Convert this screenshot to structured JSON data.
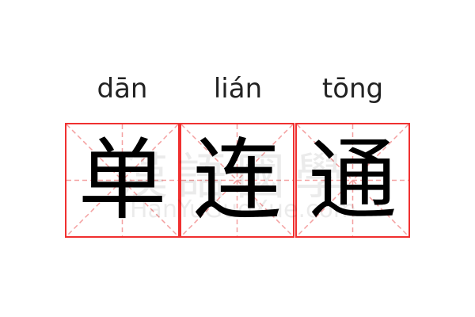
{
  "words": [
    {
      "pinyin": "dān",
      "char": "单"
    },
    {
      "pinyin": "lián",
      "char": "连"
    },
    {
      "pinyin": "tōng",
      "char": "通"
    }
  ],
  "watermark": {
    "title": "漢語國學",
    "site": "HanYuGuoXue.com"
  },
  "colors": {
    "grid_border": "#f03030",
    "guide_lines": "#f4a0a0"
  }
}
